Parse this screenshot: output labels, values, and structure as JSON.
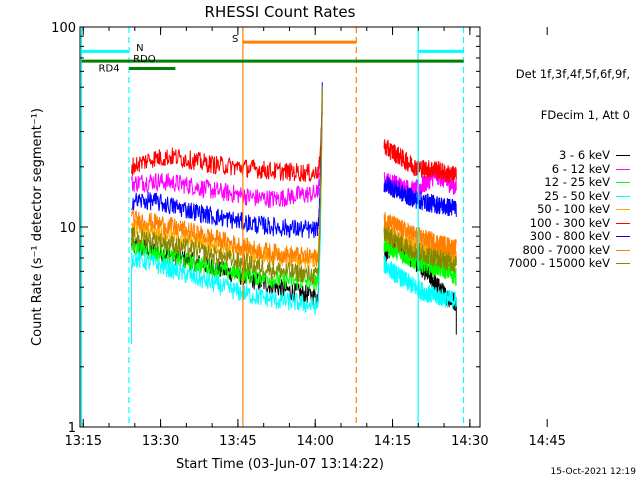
{
  "chart_data": {
    "type": "line",
    "title": "RHESSI Count Rates",
    "xlabel": "Start Time (03-Jun-07 13:14:22)",
    "ylabel": "Count Rate (s⁻¹ detector segment⁻¹)",
    "x_ticks": [
      "13:15",
      "13:30",
      "13:45",
      "14:00",
      "14:15",
      "14:30",
      "14:45"
    ],
    "y_ticks": [
      "1",
      "10",
      "100"
    ],
    "x_range_min": [
      0,
      77.6
    ],
    "y_range": [
      1,
      100
    ],
    "y_scale": "log",
    "legend_header": [
      "Det 1f,3f,4f,5f,6f,9f,",
      "FDecim 1, Att 0"
    ],
    "series": [
      {
        "name": "3 - 6 keV",
        "color": "#000000",
        "before": [
          8.0,
          7.7,
          7.2,
          6.7,
          6.3,
          5.8,
          5.4,
          5.0,
          4.7,
          4.5
        ],
        "after": [
          7.2,
          8.3,
          7.4,
          6.7,
          6.0,
          5.2,
          4.5,
          4.2
        ]
      },
      {
        "name": "6 - 12 keV",
        "color": "#ff00ff",
        "before": [
          16.5,
          17.0,
          16.7,
          16.0,
          15.2,
          14.6,
          14.0,
          13.8,
          14.4,
          14.7
        ],
        "after": [
          17.0,
          16.5,
          15.7,
          15.2,
          16.5,
          18.3,
          17.0,
          15.8
        ]
      },
      {
        "name": "12 - 25 keV",
        "color": "#00ff00",
        "before": [
          8.0,
          7.5,
          7.0,
          6.6,
          6.2,
          5.9,
          5.7,
          5.5,
          5.4,
          5.3
        ],
        "after": [
          8.2,
          7.7,
          7.2,
          6.8,
          6.5,
          6.3,
          6.1,
          5.6
        ]
      },
      {
        "name": "25 - 50 keV",
        "color": "#00ffff",
        "before": [
          7.0,
          6.6,
          6.1,
          5.6,
          5.2,
          4.8,
          4.5,
          4.3,
          4.2,
          4.0
        ],
        "after": [
          6.5,
          5.9,
          5.4,
          5.0,
          4.7,
          4.5,
          4.4,
          4.3
        ]
      },
      {
        "name": "50 - 100 keV",
        "color": "#ffaa00",
        "before": [
          10.0,
          9.6,
          9.1,
          8.6,
          8.1,
          7.6,
          7.3,
          7.1,
          6.9,
          6.9
        ],
        "after": [
          9.5,
          8.9,
          8.4,
          8.0,
          7.7,
          7.5,
          7.3,
          7.0
        ]
      },
      {
        "name": "100 - 300 keV",
        "color": "#ff0000",
        "before": [
          20.0,
          22.0,
          22.5,
          21.5,
          20.5,
          20.0,
          19.5,
          19.0,
          18.8,
          18.5
        ],
        "after": [
          25.0,
          23.5,
          21.5,
          20.0,
          19.5,
          19.5,
          18.5,
          18.0
        ]
      },
      {
        "name": "300 - 800 keV",
        "color": "#0000ff",
        "before": [
          13.5,
          13.5,
          12.7,
          12.0,
          11.3,
          10.8,
          10.3,
          10.0,
          9.8,
          9.6
        ],
        "after": [
          16.5,
          15.5,
          14.5,
          13.8,
          13.3,
          13.0,
          12.6,
          12.5
        ]
      },
      {
        "name": "800 - 7000 keV",
        "color": "#ff8000",
        "before": [
          11.0,
          10.6,
          10.0,
          9.4,
          8.8,
          8.2,
          7.7,
          7.4,
          7.2,
          7.0
        ],
        "after": [
          11.0,
          10.2,
          9.6,
          9.1,
          8.7,
          8.4,
          8.1,
          7.8
        ]
      },
      {
        "name": "7000 - 15000 keV",
        "color": "#888800",
        "before": [
          9.0,
          8.7,
          8.2,
          7.7,
          7.2,
          6.8,
          6.4,
          6.1,
          5.9,
          5.7
        ],
        "after": [
          9.3,
          8.6,
          8.0,
          7.6,
          7.3,
          7.0,
          6.8,
          6.5
        ]
      }
    ],
    "annotations": {
      "n_label": "N",
      "rdo_label": "RDO",
      "rd4_label": "RD4",
      "s_label": "S"
    },
    "colors": {
      "night": "#00ffff",
      "saa": "#ff8000",
      "decim": "#008000",
      "rdo": "#008000"
    },
    "footer_date": "15-Oct-2021 12:19"
  }
}
